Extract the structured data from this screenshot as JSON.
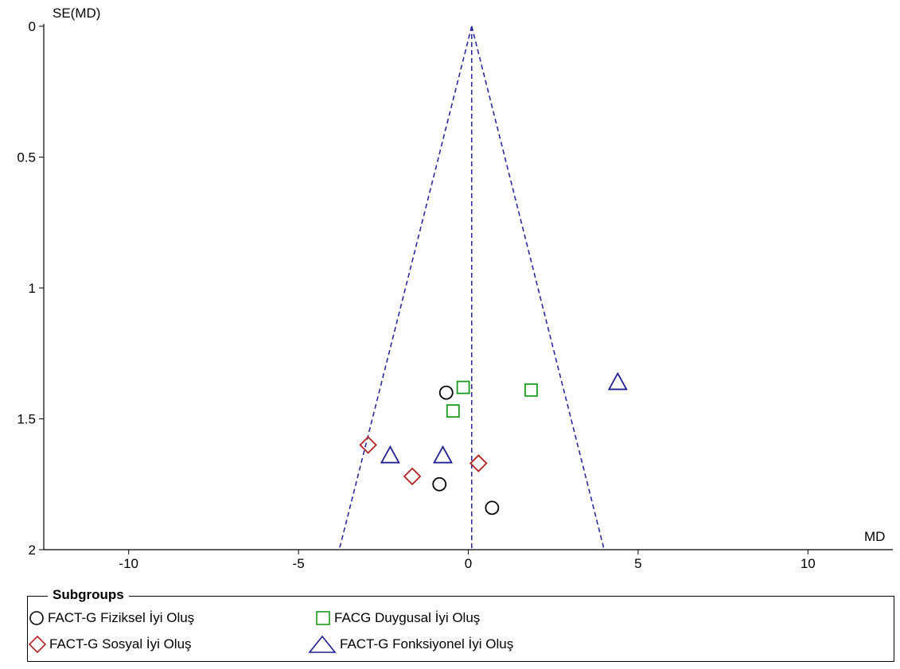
{
  "chart_data": {
    "type": "scatter",
    "xlabel": "MD",
    "ylabel": "SE(MD)",
    "xlim": [
      -12.5,
      12.5
    ],
    "ylim": [
      0,
      2
    ],
    "y_reversed": true,
    "x_ticks": [
      -10,
      -5,
      0,
      5,
      10
    ],
    "x_tick_labels": [
      "-10",
      "-5",
      "0",
      "5",
      "10"
    ],
    "y_ticks": [
      0,
      0.5,
      1,
      1.5,
      2
    ],
    "y_tick_labels": [
      "0",
      "0.5",
      "1",
      "1.5",
      "2"
    ],
    "grid": false,
    "pooled_estimate": 0.1,
    "funnel_x_at_se_2": [
      -3.8,
      4.0
    ],
    "legend_title": "Subgroups",
    "legend_position": "bottom",
    "series": [
      {
        "name": "FACT-G Fiziksel İyi Oluş",
        "marker": "circle",
        "color": "#000000",
        "points": [
          {
            "x": -0.65,
            "y": 1.4
          },
          {
            "x": -0.85,
            "y": 1.75
          },
          {
            "x": 0.7,
            "y": 1.84
          }
        ]
      },
      {
        "name": "FACG Duygusal İyi Oluş",
        "marker": "square",
        "color": "#1a9a1a",
        "points": [
          {
            "x": -0.15,
            "y": 1.38
          },
          {
            "x": 1.85,
            "y": 1.39
          },
          {
            "x": -0.45,
            "y": 1.47
          }
        ]
      },
      {
        "name": "FACT-G Sosyal İyi Oluş",
        "marker": "diamond",
        "color": "#b22222",
        "points": [
          {
            "x": -2.95,
            "y": 1.6
          },
          {
            "x": -1.65,
            "y": 1.72
          },
          {
            "x": 0.3,
            "y": 1.67
          }
        ]
      },
      {
        "name": "FACT-G Fonksiyonel İyi Oluş",
        "marker": "triangle",
        "color": "#1f1f8f",
        "points": [
          {
            "x": 4.4,
            "y": 1.36
          },
          {
            "x": -2.3,
            "y": 1.64
          },
          {
            "x": -0.75,
            "y": 1.64
          }
        ]
      }
    ]
  }
}
